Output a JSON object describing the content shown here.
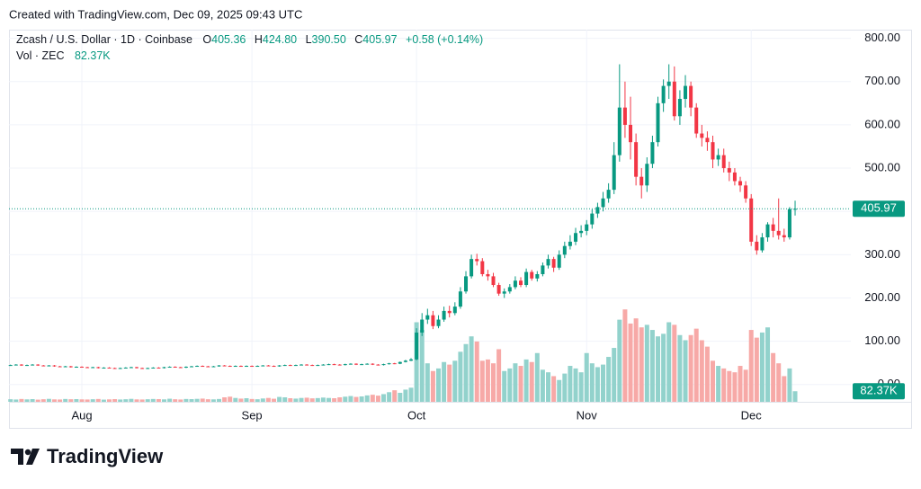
{
  "header": {
    "created": "Created with TradingView.com, Dec 09, 2025 09:43 UTC"
  },
  "footer": {
    "brand": "TradingView"
  },
  "chart_data": {
    "type": "candlestick",
    "legend": {
      "symbol": "Zcash / U.S. Dollar · 1D · Coinbase",
      "open_label": "O",
      "open": "405.36",
      "high_label": "H",
      "high": "424.80",
      "low_label": "L",
      "low": "390.50",
      "close_label": "C",
      "close": "405.97",
      "change": "+0.58 (+0.14%)",
      "volume_name": "Vol · ZEC",
      "volume": "82.37K"
    },
    "up_color": "#089981",
    "down_color": "#f23645",
    "volume_up_color": "#92d2cc",
    "volume_down_color": "#f7a9a7",
    "grid": true,
    "xlim": [
      -0.28,
      153.16
    ],
    "xticks": [
      {
        "value": 13,
        "label": "Aug"
      },
      {
        "value": 44,
        "label": "Sep"
      },
      {
        "value": 74,
        "label": "Oct"
      },
      {
        "value": 105,
        "label": "Nov"
      },
      {
        "value": 135,
        "label": "Dec"
      }
    ],
    "ylim": [
      -40,
      820
    ],
    "yticks": [
      {
        "value": 0,
        "label": "0.00"
      },
      {
        "value": 100,
        "label": "100.00"
      },
      {
        "value": 200,
        "label": "200.00"
      },
      {
        "value": 300,
        "label": "300.00"
      },
      {
        "value": 400,
        "label": "400.00"
      },
      {
        "value": 500,
        "label": "500.00"
      },
      {
        "value": 600,
        "label": "600.00"
      },
      {
        "value": 700,
        "label": "700.00"
      },
      {
        "value": 800,
        "label": "800.00"
      }
    ],
    "y2lim": [
      0,
      2900
    ],
    "open": [
      44,
      45,
      46,
      44,
      45,
      46,
      44,
      43,
      44,
      42,
      41,
      42,
      40,
      41,
      40,
      39,
      40,
      38,
      39,
      38,
      37,
      38,
      39,
      40,
      38,
      37,
      38,
      39,
      38,
      40,
      41,
      40,
      39,
      41,
      42,
      43,
      42,
      41,
      42,
      44,
      43,
      42,
      43,
      42,
      43,
      42,
      43,
      44,
      43,
      42,
      44,
      45,
      44,
      45,
      46,
      45,
      44,
      45,
      46,
      47,
      46,
      45,
      47,
      48,
      46,
      47,
      48,
      46,
      45,
      47,
      49,
      48,
      52,
      55,
      58,
      120,
      150,
      160,
      135,
      150,
      170,
      165,
      180,
      215,
      250,
      290,
      285,
      255,
      250,
      230,
      210,
      215,
      225,
      240,
      230,
      260,
      245,
      255,
      275,
      290,
      270,
      300,
      320,
      330,
      350,
      355,
      370,
      395,
      410,
      430,
      450,
      530,
      640,
      600,
      560,
      480,
      460,
      510,
      560,
      650,
      690,
      700,
      620,
      660,
      690,
      640,
      580,
      570,
      560,
      520,
      530,
      500,
      490,
      470,
      460,
      430,
      330,
      310,
      340,
      370,
      355,
      345,
      340,
      405.36
    ],
    "high": [
      46,
      47,
      47,
      46,
      47,
      47,
      45,
      45,
      45,
      43,
      43,
      43,
      42,
      42,
      41,
      41,
      41,
      40,
      40,
      39,
      39,
      40,
      41,
      41,
      39,
      39,
      40,
      40,
      41,
      42,
      42,
      41,
      42,
      43,
      44,
      44,
      43,
      43,
      45,
      45,
      44,
      44,
      44,
      44,
      44,
      44,
      45,
      45,
      44,
      45,
      46,
      46,
      46,
      47,
      47,
      46,
      46,
      47,
      48,
      48,
      47,
      48,
      49,
      49,
      48,
      49,
      49,
      47,
      48,
      50,
      50,
      53,
      57,
      61,
      130,
      165,
      175,
      170,
      160,
      180,
      182,
      190,
      225,
      262,
      300,
      302,
      292,
      265,
      258,
      235,
      222,
      232,
      250,
      248,
      268,
      265,
      262,
      282,
      300,
      295,
      310,
      330,
      345,
      362,
      368,
      380,
      405,
      420,
      445,
      465,
      560,
      740,
      700,
      665,
      580,
      500,
      525,
      575,
      665,
      705,
      740,
      735,
      680,
      715,
      700,
      650,
      600,
      585,
      575,
      545,
      545,
      515,
      500,
      480,
      470,
      440,
      345,
      350,
      375,
      385,
      430,
      360,
      410,
      424.8
    ],
    "low": [
      43,
      44,
      43,
      43,
      44,
      43,
      42,
      42,
      41,
      40,
      40,
      39,
      39,
      39,
      38,
      38,
      37,
      37,
      37,
      36,
      36,
      37,
      38,
      37,
      36,
      36,
      37,
      37,
      37,
      39,
      39,
      38,
      38,
      40,
      41,
      41,
      40,
      40,
      41,
      42,
      41,
      41,
      41,
      41,
      41,
      41,
      42,
      42,
      41,
      41,
      43,
      43,
      43,
      44,
      44,
      43,
      43,
      44,
      45,
      45,
      44,
      44,
      46,
      45,
      45,
      46,
      45,
      44,
      44,
      46,
      47,
      47,
      51,
      54,
      56,
      112,
      140,
      128,
      130,
      145,
      155,
      160,
      175,
      210,
      245,
      275,
      250,
      240,
      225,
      205,
      200,
      210,
      220,
      225,
      225,
      240,
      238,
      250,
      268,
      260,
      265,
      292,
      312,
      322,
      340,
      345,
      360,
      385,
      400,
      420,
      440,
      515,
      570,
      520,
      460,
      430,
      445,
      500,
      550,
      630,
      660,
      610,
      600,
      640,
      620,
      570,
      550,
      540,
      500,
      505,
      490,
      470,
      460,
      445,
      420,
      320,
      300,
      305,
      330,
      340,
      335,
      330,
      335,
      390.5
    ],
    "close": [
      45,
      46,
      44,
      45,
      46,
      44,
      43,
      44,
      42,
      41,
      42,
      40,
      41,
      40,
      39,
      40,
      38,
      39,
      38,
      37,
      38,
      39,
      40,
      38,
      37,
      38,
      39,
      38,
      40,
      41,
      40,
      39,
      41,
      42,
      43,
      42,
      41,
      42,
      44,
      43,
      42,
      43,
      42,
      43,
      42,
      43,
      44,
      43,
      42,
      44,
      45,
      44,
      45,
      46,
      45,
      44,
      45,
      46,
      47,
      46,
      45,
      47,
      48,
      46,
      47,
      48,
      46,
      45,
      47,
      49,
      48,
      52,
      55,
      58,
      120,
      150,
      160,
      135,
      150,
      170,
      165,
      180,
      215,
      250,
      290,
      285,
      255,
      250,
      230,
      210,
      215,
      225,
      240,
      230,
      260,
      245,
      255,
      275,
      290,
      270,
      300,
      320,
      330,
      350,
      355,
      370,
      395,
      410,
      430,
      450,
      530,
      640,
      600,
      560,
      480,
      460,
      510,
      560,
      650,
      690,
      700,
      620,
      660,
      690,
      640,
      580,
      570,
      560,
      520,
      530,
      500,
      490,
      470,
      460,
      430,
      330,
      310,
      340,
      370,
      355,
      345,
      340,
      405.39,
      405.97
    ],
    "volume": [
      20,
      18,
      22,
      19,
      21,
      17,
      20,
      23,
      19,
      18,
      22,
      20,
      21,
      19,
      18,
      20,
      22,
      17,
      19,
      21,
      18,
      20,
      23,
      19,
      18,
      20,
      22,
      21,
      19,
      24,
      20,
      18,
      22,
      21,
      23,
      25,
      20,
      19,
      22,
      35,
      40,
      30,
      25,
      28,
      22,
      20,
      26,
      30,
      24,
      38,
      35,
      28,
      25,
      30,
      32,
      27,
      29,
      33,
      30,
      28,
      35,
      40,
      45,
      38,
      42,
      50,
      55,
      48,
      60,
      75,
      90,
      70,
      95,
      110,
      620,
      560,
      300,
      240,
      260,
      310,
      290,
      320,
      390,
      450,
      510,
      470,
      320,
      330,
      300,
      410,
      240,
      260,
      300,
      280,
      330,
      310,
      380,
      250,
      230,
      200,
      170,
      220,
      280,
      260,
      230,
      380,
      300,
      270,
      290,
      350,
      420,
      640,
      720,
      610,
      650,
      580,
      600,
      560,
      510,
      530,
      620,
      600,
      520,
      480,
      520,
      570,
      480,
      430,
      320,
      280,
      260,
      240,
      230,
      280,
      250,
      560,
      500,
      540,
      580,
      380,
      300,
      200,
      260,
      82.37
    ]
  }
}
